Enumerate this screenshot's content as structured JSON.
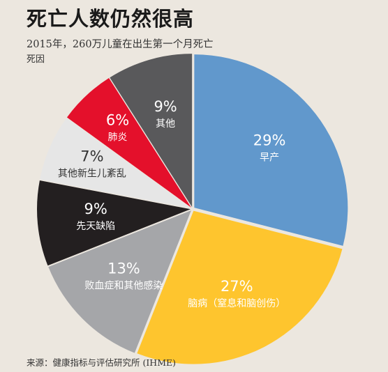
{
  "title": "死亡人数仍然很高",
  "subtitle": "2015年，260万儿童在出生第一个月死亡",
  "subtitle2": "死因",
  "source": "来源：健康指标与评估研究所 (IHME)",
  "colors": {
    "background": "#ece7df",
    "preterm": "#6198cc",
    "brain": "#fec52e",
    "sepsis": "#a5a6a9",
    "birth_defects": "#231f20",
    "other_neonatal": "#e6e6e6",
    "pneumonia": "#e4102b",
    "other": "#59595b"
  },
  "chart_data": {
    "type": "pie",
    "start_angle_deg": 0,
    "direction": "clockwise",
    "slices": [
      {
        "label": "早产",
        "percent_label": "29%",
        "value": 29,
        "color": "#6198cc",
        "text_color": "#ffffff"
      },
      {
        "label": "脑病（窒息和脑创伤）",
        "percent_label": "27%",
        "value": 27,
        "color": "#fec52e",
        "text_color": "#ffffff"
      },
      {
        "label": "败血症和其他感染",
        "percent_label": "13%",
        "value": 13,
        "color": "#a5a6a9",
        "text_color": "#ffffff"
      },
      {
        "label": "先天缺陷",
        "percent_label": "9%",
        "value": 9,
        "color": "#231f20",
        "text_color": "#ffffff"
      },
      {
        "label": "其他新生儿紊乱",
        "percent_label": "7%",
        "value": 7,
        "color": "#e6e6e6",
        "text_color": "#333333"
      },
      {
        "label": "肺炎",
        "percent_label": "6%",
        "value": 6,
        "color": "#e4102b",
        "text_color": "#ffffff"
      },
      {
        "label": "其他",
        "percent_label": "9%",
        "value": 9,
        "color": "#59595b",
        "text_color": "#ffffff"
      }
    ]
  }
}
